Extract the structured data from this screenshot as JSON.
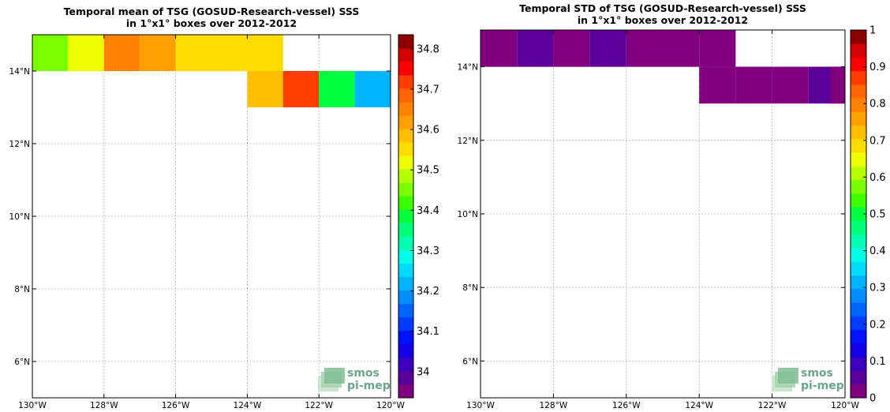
{
  "colors": [
    "#800080",
    "#5b009b",
    "#3b00c0",
    "#1400e6",
    "#0011ff",
    "#003cff",
    "#0064ff",
    "#008cff",
    "#00b4ff",
    "#00dcff",
    "#00ffe6",
    "#00ffb0",
    "#00ff78",
    "#00ff3c",
    "#3cff00",
    "#78ff00",
    "#b4ff00",
    "#f0ff00",
    "#ffdc00",
    "#ffbe00",
    "#ffa000",
    "#ff8200",
    "#ff6400",
    "#ff3c00",
    "#ff0000",
    "#d20000",
    "#8c0000"
  ],
  "logo": {
    "line1": "smos",
    "line2": "pi-mep"
  },
  "chart_data": [
    {
      "type": "heatmap",
      "title": "Temporal mean of TSG (GOSUD-Research-vessel) SSS",
      "subtitle": "in 1°x1° boxes over 2012-2012",
      "xlim": [
        -130,
        -120
      ],
      "ylim": [
        5,
        15
      ],
      "xticks": [
        {
          "v": -130,
          "label": "130°W"
        },
        {
          "v": -128,
          "label": "128°W"
        },
        {
          "v": -126,
          "label": "126°W"
        },
        {
          "v": -124,
          "label": "124°W"
        },
        {
          "v": -122,
          "label": "122°W"
        },
        {
          "v": -120,
          "label": "120°W"
        }
      ],
      "yticks": [
        {
          "v": 6,
          "label": "6°N"
        },
        {
          "v": 8,
          "label": "8°N"
        },
        {
          "v": 10,
          "label": "10°N"
        },
        {
          "v": 12,
          "label": "12°N"
        },
        {
          "v": 14,
          "label": "14°N"
        }
      ],
      "colorbar": {
        "min": 33.935,
        "max": 34.835,
        "ticks": [
          {
            "v": 34.0,
            "label": "34"
          },
          {
            "v": 34.1,
            "label": "34.1"
          },
          {
            "v": 34.2,
            "label": "34.2"
          },
          {
            "v": 34.3,
            "label": "34.3"
          },
          {
            "v": 34.4,
            "label": "34.4"
          },
          {
            "v": 34.5,
            "label": "34.5"
          },
          {
            "v": 34.6,
            "label": "34.6"
          },
          {
            "v": 34.7,
            "label": "34.7"
          },
          {
            "v": 34.8,
            "label": "34.8"
          }
        ]
      },
      "cells": [
        {
          "lon": -130,
          "lat": 14,
          "value": 34.44
        },
        {
          "lon": -129,
          "lat": 14,
          "value": 34.51
        },
        {
          "lon": -128,
          "lat": 14,
          "value": 34.66
        },
        {
          "lon": -127,
          "lat": 14,
          "value": 34.62
        },
        {
          "lon": -126,
          "lat": 14,
          "value": 34.56
        },
        {
          "lon": -125,
          "lat": 14,
          "value": 34.56
        },
        {
          "lon": -124,
          "lat": 14,
          "value": 34.56
        },
        {
          "lon": -124,
          "lat": 13,
          "value": 34.57
        },
        {
          "lon": -123,
          "lat": 13,
          "value": 34.71
        },
        {
          "lon": -122,
          "lat": 13,
          "value": 34.37
        },
        {
          "lon": -121,
          "lat": 13,
          "value": 34.21
        }
      ]
    },
    {
      "type": "heatmap",
      "title": "Temporal STD of TSG (GOSUD-Research-vessel) SSS",
      "subtitle": "in 1°x1° boxes over 2012-2012",
      "xlim": [
        -130,
        -120
      ],
      "ylim": [
        5,
        15
      ],
      "xticks": [
        {
          "v": -130,
          "label": "130°W"
        },
        {
          "v": -128,
          "label": "128°W"
        },
        {
          "v": -126,
          "label": "126°W"
        },
        {
          "v": -124,
          "label": "124°W"
        },
        {
          "v": -122,
          "label": "122°W"
        },
        {
          "v": -120,
          "label": "120°W"
        }
      ],
      "yticks": [
        {
          "v": 6,
          "label": "6°N"
        },
        {
          "v": 8,
          "label": "8°N"
        },
        {
          "v": 10,
          "label": "10°N"
        },
        {
          "v": 12,
          "label": "12°N"
        },
        {
          "v": 14,
          "label": "14°N"
        }
      ],
      "colorbar": {
        "min": 0,
        "max": 1,
        "ticks": [
          {
            "v": 0,
            "label": "0"
          },
          {
            "v": 0.1,
            "label": "0.1"
          },
          {
            "v": 0.2,
            "label": "0.2"
          },
          {
            "v": 0.3,
            "label": "0.3"
          },
          {
            "v": 0.4,
            "label": "0.4"
          },
          {
            "v": 0.5,
            "label": "0.5"
          },
          {
            "v": 0.6,
            "label": "0.6"
          },
          {
            "v": 0.7,
            "label": "0.7"
          },
          {
            "v": 0.8,
            "label": "0.8"
          },
          {
            "v": 0.9,
            "label": "0.9"
          },
          {
            "v": 1,
            "label": "1"
          }
        ]
      },
      "cells": [
        {
          "lon": -130,
          "lat": 14,
          "value": 0.01
        },
        {
          "lon": -129,
          "lat": 14,
          "value": 0.06
        },
        {
          "lon": -128,
          "lat": 14,
          "value": 0.02
        },
        {
          "lon": -127,
          "lat": 14,
          "value": 0.06
        },
        {
          "lon": -126,
          "lat": 14,
          "value": 0.02
        },
        {
          "lon": -125,
          "lat": 14,
          "value": 0.02
        },
        {
          "lon": -124,
          "lat": 14,
          "value": 0.02
        },
        {
          "lon": -124,
          "lat": 13,
          "value": 0.02
        },
        {
          "lon": -123,
          "lat": 13,
          "value": 0.02
        },
        {
          "lon": -122,
          "lat": 13,
          "value": 0.02
        },
        {
          "lon": -121,
          "lat": 13,
          "value": 0.06
        },
        {
          "lon": -120.4,
          "lat": 13,
          "value": 0.02
        }
      ]
    }
  ]
}
